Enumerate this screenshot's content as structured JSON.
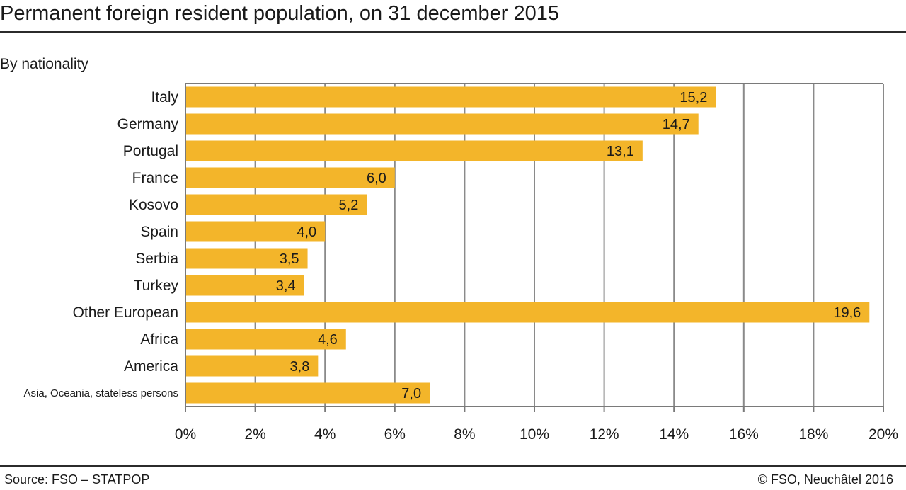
{
  "header": {
    "title": "Permanent foreign resident population, on 31 december 2015",
    "subtitle": "By nationality"
  },
  "footer": {
    "source": "Source: FSO – STATPOP",
    "copyright": "© FSO, Neuchâtel 2016"
  },
  "colors": {
    "bar": "#f3b52a",
    "grid": "#8a8a8a",
    "axis": "#7a7a7a"
  },
  "chart_data": {
    "type": "bar",
    "orientation": "horizontal",
    "title": "Permanent foreign resident population, on 31 december 2015",
    "subtitle": "By nationality",
    "categories": [
      "Italy",
      "Germany",
      "Portugal",
      "France",
      "Kosovo",
      "Spain",
      "Serbia",
      "Turkey",
      "Other European",
      "Africa",
      "America",
      "Asia, Oceania, stateless persons"
    ],
    "values": [
      15.2,
      14.7,
      13.1,
      6.0,
      5.2,
      4.0,
      3.5,
      3.4,
      19.6,
      4.6,
      3.8,
      7.0
    ],
    "value_labels": [
      "15,2",
      "14,7",
      "13,1",
      "6,0",
      "5,2",
      "4,0",
      "3,5",
      "3,4",
      "19,6",
      "4,6",
      "3,8",
      "7,0"
    ],
    "xlim": [
      0,
      20
    ],
    "xticks": [
      0,
      2,
      4,
      6,
      8,
      10,
      12,
      14,
      16,
      18,
      20
    ],
    "xtick_labels": [
      "0%",
      "2%",
      "4%",
      "6%",
      "8%",
      "10%",
      "12%",
      "14%",
      "16%",
      "18%",
      "20%"
    ],
    "grid": true,
    "legend": false
  }
}
